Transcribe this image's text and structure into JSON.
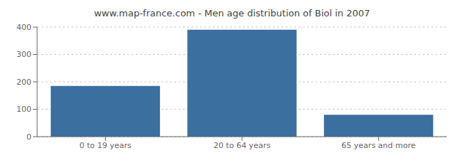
{
  "chart_data": {
    "type": "bar",
    "title": "www.map-france.com - Men age distribution of Biol in 2007",
    "categories": [
      "0 to 19 years",
      "20 to 64 years",
      "65 years and more"
    ],
    "values": [
      185,
      390,
      80
    ],
    "color": "#3a6f9f",
    "ylim": [
      0,
      400
    ],
    "yticks": [
      0,
      100,
      200,
      300,
      400
    ],
    "grid": true
  }
}
